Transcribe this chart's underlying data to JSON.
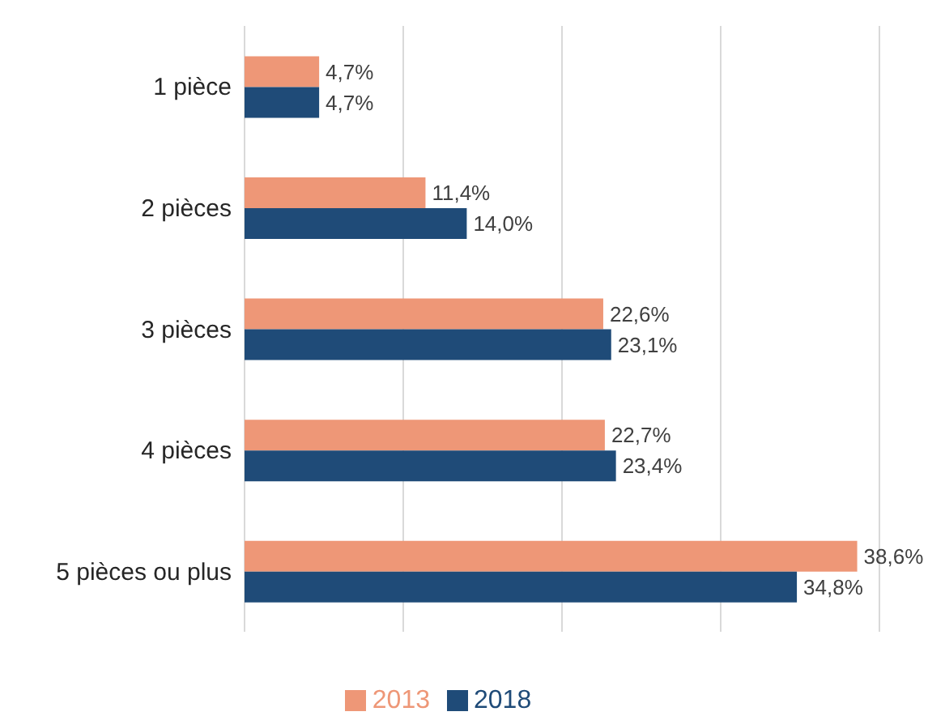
{
  "chart_data": {
    "type": "bar",
    "orientation": "horizontal",
    "categories": [
      "1 pièce",
      "2 pièces",
      "3 pièces",
      "4 pièces",
      "5 pièces ou plus"
    ],
    "series": [
      {
        "name": "2013",
        "color": "#ee9777",
        "values": [
          4.7,
          11.4,
          22.6,
          22.7,
          38.6
        ],
        "value_labels": [
          "4,7%",
          "11,4%",
          "22,6%",
          "22,7%",
          "38,6%"
        ]
      },
      {
        "name": "2018",
        "color": "#1f4b78",
        "values": [
          4.7,
          14.0,
          23.1,
          23.4,
          34.8
        ],
        "value_labels": [
          "4,7%",
          "14,0%",
          "23,1%",
          "23,4%",
          "34,8%"
        ]
      }
    ],
    "xlim": [
      0,
      40
    ],
    "xticks": [
      {
        "value": 0,
        "label": null
      },
      {
        "value": 10,
        "label": null
      },
      {
        "value": 20,
        "label": null
      },
      {
        "value": 30,
        "label": null
      },
      {
        "value": 40,
        "label": null
      }
    ],
    "tick_labels": "y",
    "grid": "x",
    "legend": "bottom"
  }
}
